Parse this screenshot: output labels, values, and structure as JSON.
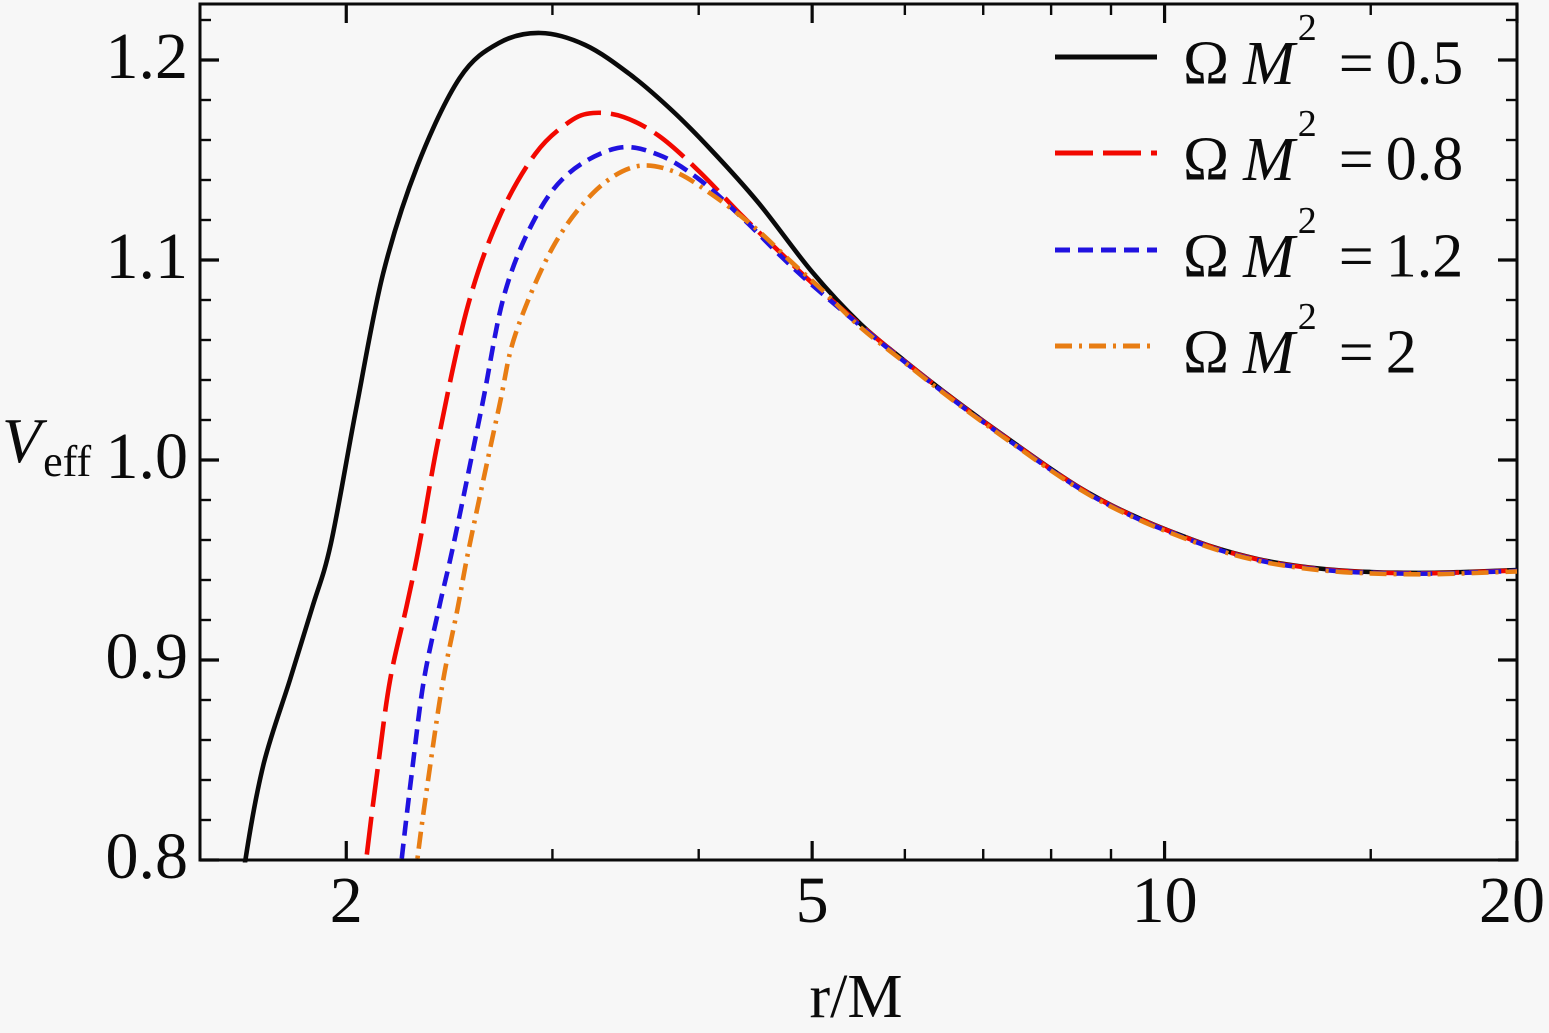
{
  "figure": {
    "background": "#f7f7f7",
    "frame_color": "#0a0a0a",
    "text_color": "#0a0a0a"
  },
  "axes": {
    "x": {
      "label": "r/M",
      "scale": "log",
      "min": 1.5,
      "max": 20,
      "ticks_major": [
        2,
        5,
        10,
        20
      ],
      "tick_labels": [
        "2",
        "5",
        "10",
        "20"
      ],
      "ticks_minor": [
        3,
        4,
        6,
        7,
        8,
        9,
        15
      ]
    },
    "y": {
      "label_main": "V",
      "label_sub": "eff",
      "min": 0.8,
      "max": 1.228,
      "ticks_major": [
        0.8,
        0.9,
        1.0,
        1.1,
        1.2
      ],
      "tick_labels": [
        "0.8",
        "0.9",
        "1.0",
        "1.1",
        "1.2"
      ],
      "minor_step": 0.02
    }
  },
  "legend": {
    "position": "top-right",
    "items": [
      {
        "omega": "Ω",
        "m": "M",
        "exponent": "2",
        "equals": "=",
        "value": "0.5"
      },
      {
        "omega": "Ω",
        "m": "M",
        "exponent": "2",
        "equals": "=",
        "value": "0.8"
      },
      {
        "omega": "Ω",
        "m": "M",
        "exponent": "2",
        "equals": "=",
        "value": "1.2"
      },
      {
        "omega": "Ω",
        "m": "M",
        "exponent": "2",
        "equals": "=",
        "value": "2"
      }
    ]
  },
  "chart_data": {
    "type": "line",
    "title": "",
    "xlabel": "r/M",
    "ylabel": "V_eff",
    "x_scale": "log",
    "xlim": [
      1.5,
      20
    ],
    "ylim": [
      0.8,
      1.228
    ],
    "grid": false,
    "legend_position": "top-right",
    "series": [
      {
        "name": "Ω M² = 0.5",
        "color": "#0a0a0a",
        "dash": [],
        "width": 4.6,
        "points": [
          [
            1.605,
            0.755
          ],
          [
            1.64,
            0.8
          ],
          [
            1.7,
            0.848
          ],
          [
            1.79,
            0.89
          ],
          [
            1.87,
            0.926
          ],
          [
            1.94,
            0.958
          ],
          [
            2.04,
            1.026
          ],
          [
            2.15,
            1.093
          ],
          [
            2.3,
            1.147
          ],
          [
            2.5,
            1.191
          ],
          [
            2.7,
            1.2085
          ],
          [
            2.93,
            1.2135
          ],
          [
            3.2,
            1.2075
          ],
          [
            3.5,
            1.1925
          ],
          [
            3.8,
            1.1745
          ],
          [
            4.1,
            1.155
          ],
          [
            4.5,
            1.1285
          ],
          [
            5.0,
            1.094
          ],
          [
            5.5,
            1.068
          ],
          [
            6.0,
            1.0495
          ],
          [
            6.5,
            1.0335
          ],
          [
            7.0,
            1.0195
          ],
          [
            7.5,
            1.007
          ],
          [
            8.0,
            0.9955
          ],
          [
            8.5,
            0.9855
          ],
          [
            9.0,
            0.9775
          ],
          [
            9.5,
            0.971
          ],
          [
            10.0,
            0.9655
          ],
          [
            11.0,
            0.9565
          ],
          [
            12.0,
            0.9505
          ],
          [
            13.0,
            0.947
          ],
          [
            14.0,
            0.945
          ],
          [
            15.0,
            0.944
          ],
          [
            16.0,
            0.9436
          ],
          [
            17.0,
            0.9436
          ],
          [
            18.0,
            0.944
          ],
          [
            19.0,
            0.9445
          ],
          [
            20.0,
            0.945
          ]
        ]
      },
      {
        "name": "Ω M² = 0.8",
        "color": "#f20800",
        "dash": [
          38,
          10
        ],
        "width": 4.6,
        "points": [
          [
            2.045,
            0.755
          ],
          [
            2.08,
            0.8
          ],
          [
            2.13,
            0.848
          ],
          [
            2.18,
            0.89
          ],
          [
            2.25,
            0.926
          ],
          [
            2.31,
            0.958
          ],
          [
            2.4,
            1.012
          ],
          [
            2.54,
            1.077
          ],
          [
            2.7,
            1.121
          ],
          [
            2.9,
            1.153
          ],
          [
            3.1,
            1.169
          ],
          [
            3.25,
            1.1735
          ],
          [
            3.45,
            1.1715
          ],
          [
            3.7,
            1.162
          ],
          [
            4.0,
            1.1445
          ],
          [
            4.35,
            1.1225
          ],
          [
            4.7,
            1.1035
          ],
          [
            5.0,
            1.0885
          ],
          [
            5.5,
            1.0675
          ],
          [
            6.0,
            1.0493
          ],
          [
            6.5,
            1.0333
          ],
          [
            7.0,
            1.0193
          ],
          [
            7.5,
            1.0068
          ],
          [
            8.0,
            0.9953
          ],
          [
            8.5,
            0.9853
          ],
          [
            9.0,
            0.9773
          ],
          [
            9.5,
            0.9708
          ],
          [
            10.0,
            0.9653
          ],
          [
            11.0,
            0.9563
          ],
          [
            12.0,
            0.9503
          ],
          [
            13.0,
            0.9468
          ],
          [
            14.0,
            0.9448
          ],
          [
            15.0,
            0.9438
          ],
          [
            16.0,
            0.9434
          ],
          [
            17.0,
            0.9434
          ],
          [
            18.0,
            0.9438
          ],
          [
            19.0,
            0.9443
          ],
          [
            20.0,
            0.9448
          ]
        ]
      },
      {
        "name": "Ω M² = 1.2",
        "color": "#2012e0",
        "dash": [
          15,
          8
        ],
        "width": 4.6,
        "points": [
          [
            2.19,
            0.755
          ],
          [
            2.23,
            0.8
          ],
          [
            2.28,
            0.848
          ],
          [
            2.33,
            0.89
          ],
          [
            2.4,
            0.926
          ],
          [
            2.47,
            0.958
          ],
          [
            2.61,
            1.026
          ],
          [
            2.73,
            1.083
          ],
          [
            2.9,
            1.121
          ],
          [
            3.1,
            1.1435
          ],
          [
            3.41,
            1.156
          ],
          [
            3.7,
            1.1525
          ],
          [
            4.0,
            1.1405
          ],
          [
            4.35,
            1.1215
          ],
          [
            4.7,
            1.102
          ],
          [
            5.0,
            1.0875
          ],
          [
            5.5,
            1.067
          ],
          [
            6.0,
            1.049
          ],
          [
            6.5,
            1.033
          ],
          [
            7.0,
            1.019
          ],
          [
            7.5,
            1.0065
          ],
          [
            8.0,
            0.995
          ],
          [
            8.5,
            0.985
          ],
          [
            9.0,
            0.977
          ],
          [
            9.5,
            0.9705
          ],
          [
            10.0,
            0.965
          ],
          [
            11.0,
            0.956
          ],
          [
            12.0,
            0.95
          ],
          [
            13.0,
            0.9465
          ],
          [
            14.0,
            0.9445
          ],
          [
            15.0,
            0.9436
          ],
          [
            16.0,
            0.9432
          ],
          [
            17.0,
            0.9432
          ],
          [
            18.0,
            0.9436
          ],
          [
            19.0,
            0.9441
          ],
          [
            20.0,
            0.9446
          ]
        ]
      },
      {
        "name": "Ω M² = 2",
        "color": "#e87d13",
        "dash": [
          17,
          7,
          3,
          7
        ],
        "width": 4.6,
        "points": [
          [
            2.26,
            0.755
          ],
          [
            2.3,
            0.8
          ],
          [
            2.36,
            0.848
          ],
          [
            2.42,
            0.89
          ],
          [
            2.49,
            0.926
          ],
          [
            2.55,
            0.958
          ],
          [
            2.7,
            1.026
          ],
          [
            2.79,
            1.063
          ],
          [
            3.0,
            1.106
          ],
          [
            3.25,
            1.1335
          ],
          [
            3.52,
            1.1465
          ],
          [
            3.8,
            1.1445
          ],
          [
            4.1,
            1.133
          ],
          [
            4.45,
            1.117
          ],
          [
            4.8,
            1.099
          ],
          [
            5.1,
            1.085
          ],
          [
            5.5,
            1.0663
          ],
          [
            6.0,
            1.0487
          ],
          [
            6.5,
            1.0327
          ],
          [
            7.0,
            1.0187
          ],
          [
            7.5,
            1.0062
          ],
          [
            8.0,
            0.9947
          ],
          [
            8.5,
            0.9847
          ],
          [
            9.0,
            0.9767
          ],
          [
            9.5,
            0.9702
          ],
          [
            10.0,
            0.9647
          ],
          [
            11.0,
            0.9557
          ],
          [
            12.0,
            0.9497
          ],
          [
            13.0,
            0.9462
          ],
          [
            14.0,
            0.9442
          ],
          [
            15.0,
            0.9433
          ],
          [
            16.0,
            0.9429
          ],
          [
            17.0,
            0.9429
          ],
          [
            18.0,
            0.9433
          ],
          [
            19.0,
            0.9438
          ],
          [
            20.0,
            0.9443
          ]
        ]
      }
    ]
  }
}
